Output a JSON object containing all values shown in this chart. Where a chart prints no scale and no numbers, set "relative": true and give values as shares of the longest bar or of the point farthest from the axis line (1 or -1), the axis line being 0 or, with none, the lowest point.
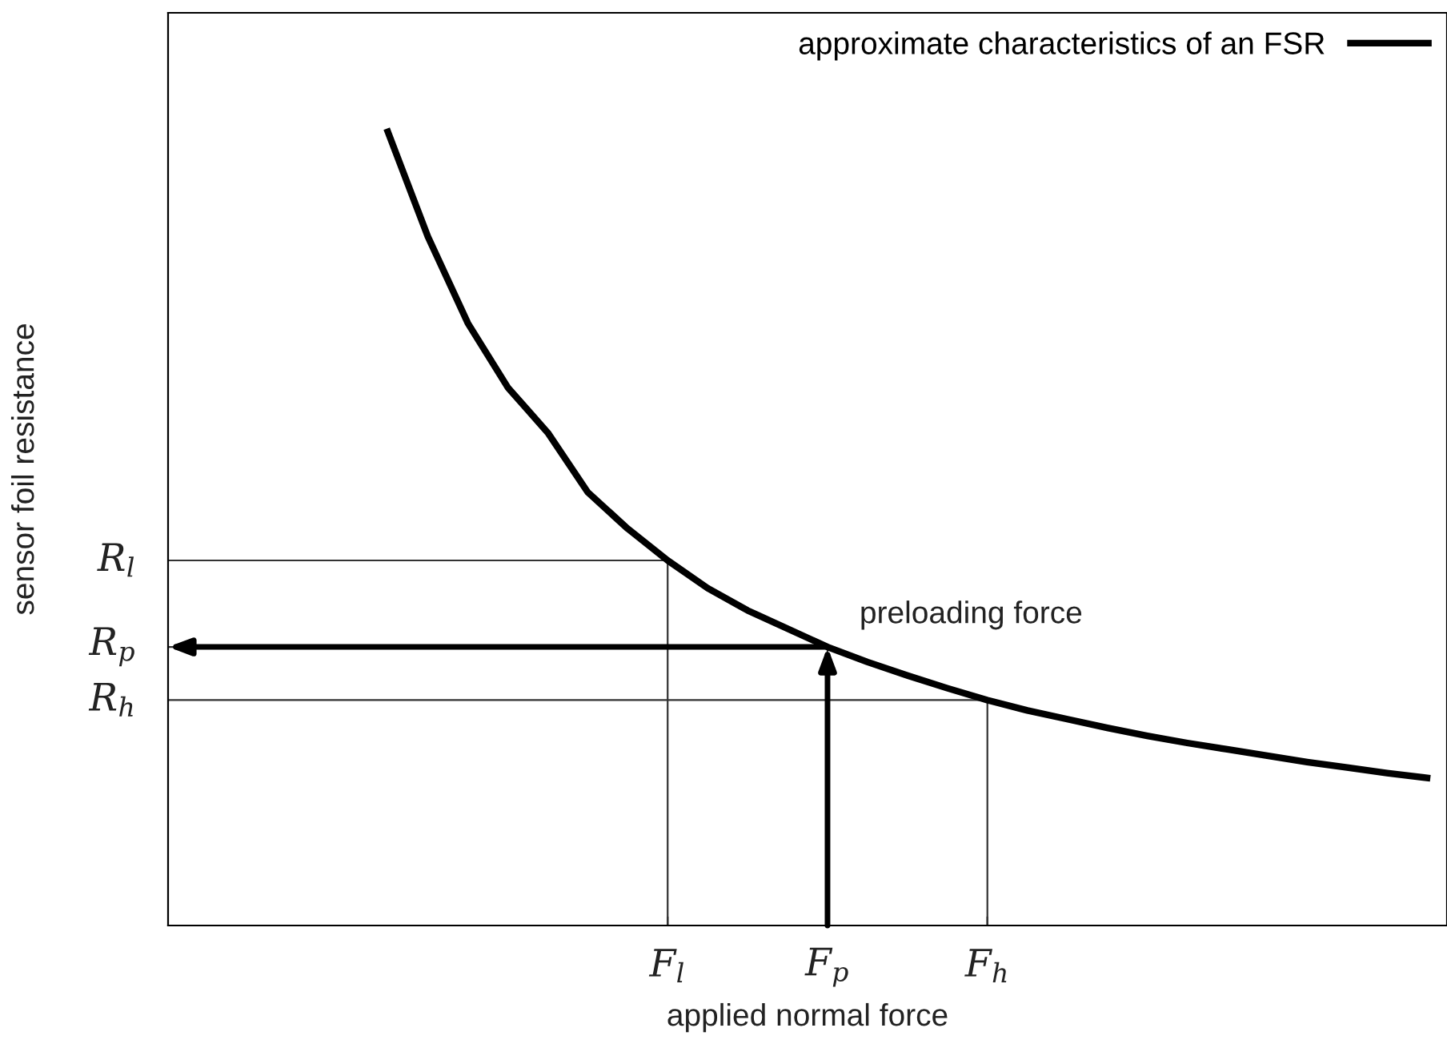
{
  "chart_data": {
    "type": "line",
    "xlabel": "applied normal force",
    "ylabel": "sensor foil resistance",
    "relative": true,
    "categories": [
      null,
      null,
      null,
      null,
      null,
      null,
      null,
      null,
      null,
      null,
      null,
      null,
      "F$_{l}$",
      null,
      null,
      null,
      "F$_{p}$",
      null,
      null,
      null,
      "F$_{h}$",
      null,
      null,
      null,
      null,
      null,
      null,
      null,
      null,
      null,
      null,
      null
    ],
    "series": [
      {
        "name": "approximate characteristics of an FSR",
        "color": "#000000",
        "values": [
          null,
          null,
          null,
          null,
          null,
          1.0,
          0.868,
          0.759,
          0.678,
          0.621,
          0.546,
          0.5,
          0.46,
          0.425,
          0.397,
          0.374,
          0.351,
          0.332,
          0.315,
          0.299,
          0.284,
          0.271,
          0.26,
          0.249,
          0.239,
          0.23,
          0.222,
          0.214,
          0.206,
          0.199,
          0.192,
          0.186
        ]
      }
    ],
    "ref_lines": [
      {
        "axis": "x",
        "value": "F$_{l}$",
        "color": "#333333"
      },
      {
        "axis": "x",
        "value": "F$_{p}$",
        "color": "#333333"
      },
      {
        "axis": "x",
        "value": "F$_{h}$",
        "color": "#333333"
      },
      {
        "axis": "y",
        "value": 0.46,
        "label": "R$_{l}$",
        "color": "#333333"
      },
      {
        "axis": "y",
        "value": 0.351,
        "label": "R$_{p}$",
        "color": "#333333"
      },
      {
        "axis": "y",
        "value": 0.284,
        "label": "R$_{h}$",
        "color": "#333333"
      }
    ],
    "annotations": [
      {
        "text": "preloading force",
        "x": "F$_{p}$",
        "y": 0.351
      }
    ],
    "legend": "top right"
  }
}
